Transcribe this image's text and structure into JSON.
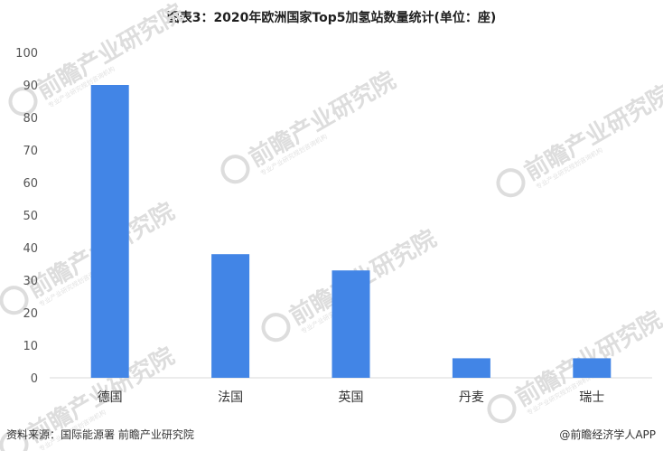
{
  "title": "图表3：2020年欧洲国家Top5加氢站数量统计(单位：座)",
  "source": "资料来源：国际能源署 前瞻产业研究院",
  "credit": "@前瞻经济学人APP",
  "watermark": {
    "brand": "前瞻产业研究院",
    "sub": "专业产业研究规划咨询机构"
  },
  "colors": {
    "bar": "#4285e6",
    "axis": "#d9d9d9",
    "watermark": "#dddddd"
  },
  "chart_data": {
    "type": "bar",
    "title": "图表3：2020年欧洲国家Top5加氢站数量统计(单位：座)",
    "xlabel": "",
    "ylabel": "",
    "categories": [
      "德国",
      "法国",
      "英国",
      "丹麦",
      "瑞士"
    ],
    "values": [
      90,
      38,
      33,
      6,
      6
    ],
    "ylim": [
      0,
      100
    ],
    "yticks": [
      0,
      10,
      20,
      30,
      40,
      50,
      60,
      70,
      80,
      90,
      100
    ],
    "grid": false,
    "legend": "none"
  }
}
